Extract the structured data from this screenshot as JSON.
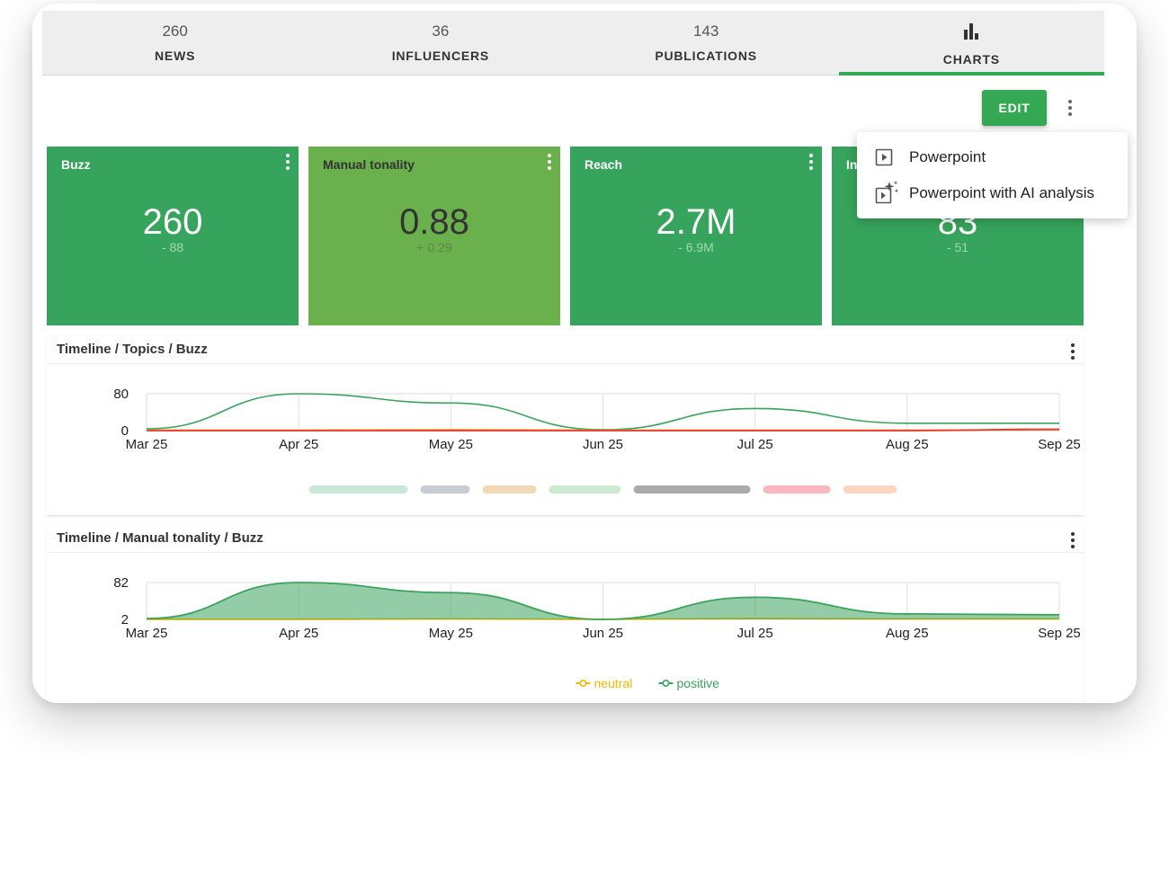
{
  "tabs": [
    {
      "count": "260",
      "label": "NEWS"
    },
    {
      "count": "36",
      "label": "INFLUENCERS"
    },
    {
      "count": "143",
      "label": "PUBLICATIONS"
    },
    {
      "count": "",
      "label": "CHARTS"
    }
  ],
  "active_tab": "CHARTS",
  "toolbar": {
    "edit_label": "EDIT"
  },
  "cards": [
    {
      "title": "Buzz",
      "value": "260",
      "delta": "- 88",
      "color": "#36a45c"
    },
    {
      "title": "Manual tonality",
      "value": "0.88",
      "delta": "+ 0.29",
      "color": "#6ab04c"
    },
    {
      "title": "Reach",
      "value": "2.7M",
      "delta": "- 6.9M",
      "color": "#36a45c"
    },
    {
      "title": "In",
      "value": "83",
      "delta": "- 51",
      "color": "#36a45c"
    }
  ],
  "menu": {
    "items": [
      {
        "label": "Powerpoint",
        "icon": "presentation-icon"
      },
      {
        "label": "Powerpoint with AI analysis",
        "icon": "ai-sparkle-presentation-icon"
      }
    ]
  },
  "panels": {
    "topics_title": "Timeline / Topics / Buzz",
    "tonality_title": "Timeline / Manual tonality / Buzz"
  },
  "chart_data": [
    {
      "type": "line",
      "title": "Timeline / Topics / Buzz",
      "categories": [
        "Mar 25",
        "Apr 25",
        "May 25",
        "Jun 25",
        "Jul 25",
        "Aug 25",
        "Sep 25"
      ],
      "y_ticks": [
        "80",
        "0"
      ],
      "ylim": [
        0,
        80
      ],
      "grid": true,
      "legend_placement": "bottom",
      "series": [
        {
          "values": [
            4,
            80,
            60,
            2,
            48,
            16,
            16
          ],
          "color": "#3aa35c"
        },
        {
          "values": [
            1,
            1,
            2,
            1,
            1,
            1,
            2
          ],
          "color": "#f29b30"
        },
        {
          "values": [
            0,
            0,
            0,
            0,
            0,
            0,
            3
          ],
          "color": "#e8382c"
        }
      ],
      "legend_colors": [
        "#9fd6b2",
        "#9aa4ae",
        "#e8b97c",
        "#a2d9a8",
        "#666666",
        "#f27d86",
        "#f5b48e"
      ]
    },
    {
      "type": "area",
      "title": "Timeline / Manual tonality / Buzz",
      "categories": [
        "Mar 25",
        "Apr 25",
        "May 25",
        "Jun 25",
        "Jul 25",
        "Aug 25",
        "Sep 25"
      ],
      "y_ticks": [
        "82",
        "2"
      ],
      "ylim": [
        2,
        82
      ],
      "grid": true,
      "legend_placement": "bottom",
      "series": [
        {
          "name": "neutral",
          "values": [
            2,
            2,
            3,
            2,
            4,
            3,
            3
          ],
          "color": "#f5b800"
        },
        {
          "name": "positive",
          "values": [
            4,
            82,
            60,
            2,
            50,
            14,
            12
          ],
          "color": "#3aa35c"
        }
      ]
    }
  ]
}
